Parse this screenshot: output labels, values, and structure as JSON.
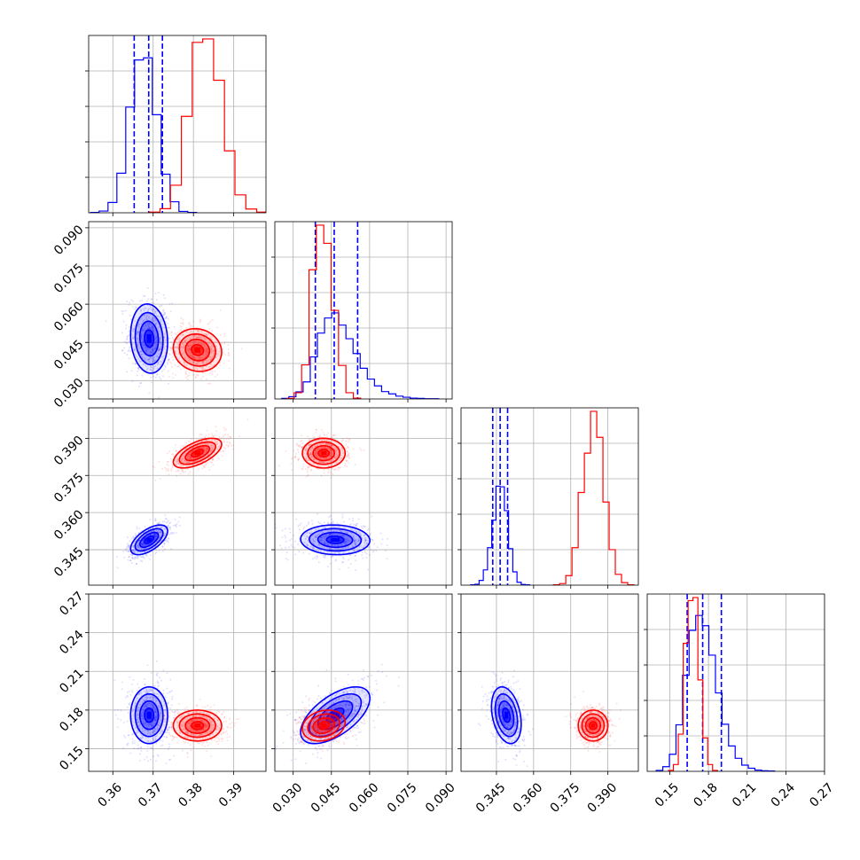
{
  "chart_data": {
    "type": "corner",
    "title": "",
    "grid": true,
    "colors": {
      "blue": "#0000ff",
      "red": "#ff0000"
    },
    "params": [
      {
        "range": [
          0.354,
          0.398
        ],
        "ticks": [
          "0.36",
          "0.37",
          "0.38",
          "0.39"
        ]
      },
      {
        "range": [
          0.0228,
          0.0924
        ],
        "ticks": [
          "0.030",
          "0.045",
          "0.060",
          "0.075",
          "0.090"
        ]
      },
      {
        "range": [
          0.3307,
          0.4023
        ],
        "ticks": [
          "0.345",
          "0.360",
          "0.375",
          "0.390"
        ]
      },
      {
        "range": [
          0.1325,
          0.27
        ],
        "ticks": [
          "0.15",
          "0.18",
          "0.21",
          "0.24",
          "0.27"
        ]
      }
    ],
    "series": [
      {
        "color": "blue",
        "means": [
          0.369,
          0.0465,
          0.349,
          0.176
        ],
        "stds": [
          0.0023,
          0.0068,
          0.003,
          0.011
        ],
        "quantiles": [
          [
            0.3653,
            0.3689,
            0.3723
          ],
          [
            0.0387,
            0.0461,
            0.0553
          ],
          [
            0.3435,
            0.3465,
            0.3495
          ],
          [
            0.1635,
            0.1755,
            0.19
          ]
        ],
        "histograms": [
          {
            "edges": [
              0.3545,
              0.3566,
              0.3588,
              0.361,
              0.3632,
              0.3654,
              0.3676,
              0.3698,
              0.372,
              0.3742,
              0.3764,
              0.3786,
              0.3808
            ],
            "counts": [
              1,
              5,
              30,
              115,
              307,
              444,
              450,
              285,
              112,
              32,
              4,
              1
            ]
          },
          {
            "edges": [
              0.0255,
              0.0283,
              0.0311,
              0.0339,
              0.0367,
              0.0395,
              0.0423,
              0.0451,
              0.0479,
              0.0507,
              0.0535,
              0.0563,
              0.0591,
              0.0619,
              0.0647,
              0.0675,
              0.0703,
              0.0731,
              0.0759,
              0.0787,
              0.0815,
              0.0843,
              0.0871
            ],
            "counts": [
              2,
              8,
              25,
              60,
              148,
              232,
              285,
              303,
              260,
              212,
              160,
              108,
              70,
              46,
              26,
              18,
              10,
              6,
              3,
              2,
              1,
              1
            ]
          },
          {
            "edges": [
              0.3346,
              0.3363,
              0.338,
              0.3397,
              0.3414,
              0.3431,
              0.3448,
              0.3465,
              0.3482,
              0.3499,
              0.3516,
              0.3533,
              0.355,
              0.3567,
              0.3584
            ],
            "counts": [
              1,
              3,
              15,
              48,
              118,
              205,
              312,
              310,
              235,
              115,
              42,
              9,
              2,
              1
            ]
          },
          {
            "edges": [
              0.1395,
              0.1446,
              0.1497,
              0.1548,
              0.1599,
              0.165,
              0.1701,
              0.1752,
              0.1803,
              0.1854,
              0.1905,
              0.1956,
              0.2007,
              0.2058,
              0.2109,
              0.216,
              0.2211,
              0.2262,
              0.2313
            ],
            "counts": [
              3,
              15,
              55,
              150,
              310,
              455,
              503,
              470,
              375,
              253,
              152,
              82,
              42,
              20,
              10,
              4,
              2,
              1
            ]
          }
        ],
        "correlations": {
          "1-0": -0.1,
          "2-0": 0.6,
          "2-1": -0.05,
          "3-0": 0.0,
          "3-1": 0.6,
          "3-2": -0.3
        }
      },
      {
        "color": "red",
        "means": [
          0.381,
          0.042,
          0.384,
          0.168
        ],
        "stds": [
          0.003,
          0.0042,
          0.003,
          0.006
        ],
        "histograms": [
          {
            "edges": [
              0.369,
              0.3717,
              0.3743,
              0.377,
              0.3797,
              0.3823,
              0.385,
              0.3877,
              0.3903,
              0.393,
              0.3957,
              0.3983
            ],
            "counts": [
              2,
              12,
              80,
              280,
              495,
              505,
              385,
              180,
              52,
              11,
              2
            ]
          },
          {
            "edges": [
              0.0275,
              0.0304,
              0.0333,
              0.0362,
              0.0391,
              0.042,
              0.0449,
              0.0478,
              0.0507,
              0.0536,
              0.0565
            ],
            "counts": [
              2,
              22,
              120,
              455,
              612,
              548,
              312,
              118,
              22,
              3
            ]
          },
          {
            "edges": [
              0.368,
              0.3705,
              0.373,
              0.3755,
              0.378,
              0.3805,
              0.383,
              0.3855,
              0.388,
              0.3905,
              0.393,
              0.3955,
              0.398,
              0.4005
            ],
            "counts": [
              1,
              5,
              30,
              118,
              292,
              416,
              548,
              466,
              262,
              112,
              34,
              8,
              1
            ]
          },
          {
            "edges": [
              0.149,
              0.1528,
              0.1566,
              0.1604,
              0.1642,
              0.168,
              0.1718,
              0.1756,
              0.1794,
              0.1832,
              0.187
            ],
            "counts": [
              3,
              22,
              120,
              413,
              551,
              561,
              295,
              108,
              22,
              3
            ]
          }
        ],
        "correlations": {
          "1-0": -0.1,
          "2-0": 0.6,
          "2-1": 0.0,
          "3-0": 0.0,
          "3-1": 0.2,
          "3-2": 0.0
        }
      }
    ]
  }
}
